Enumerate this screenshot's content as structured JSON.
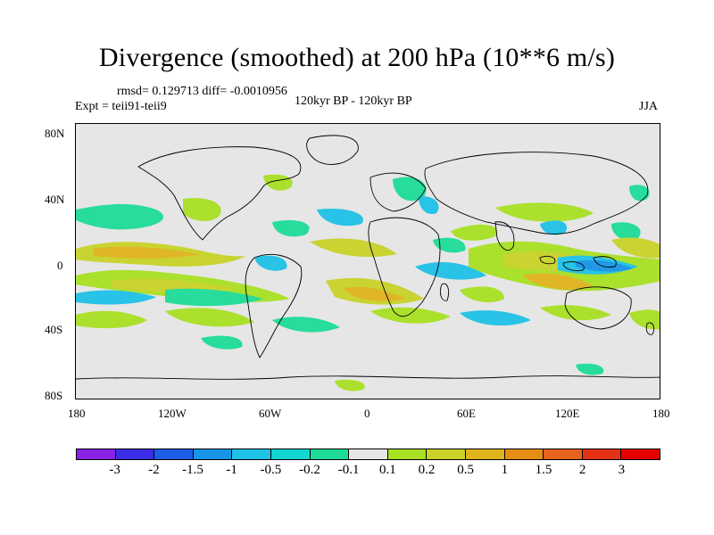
{
  "title": "Divergence (smoothed) at 200 hPa (10**6 m/s)",
  "stats": "rmsd= 0.129713 diff= -0.0010956",
  "expt": "Expt = teii91-teii9",
  "period": "120kyr BP - 120kyr BP",
  "season": "JJA",
  "y_ticks": [
    "80N",
    "40N",
    "0",
    "40S",
    "80S"
  ],
  "x_ticks": [
    "180",
    "120W",
    "60W",
    "0",
    "60E",
    "120E",
    "180"
  ],
  "colorbar": {
    "labels": [
      "-3",
      "-2",
      "-1.5",
      "-1",
      "-0.5",
      "-0.2",
      "-0.1",
      "0.1",
      "0.2",
      "0.5",
      "1",
      "1.5",
      "2",
      "3"
    ],
    "colors": [
      "#8a22e6",
      "#3c2ee6",
      "#1e5ee6",
      "#1694e6",
      "#1ec2e6",
      "#14d6d0",
      "#1edc98",
      "#e6e6e6",
      "#a8e024",
      "#c8d228",
      "#e0b41e",
      "#e68e14",
      "#e6641e",
      "#e63214",
      "#e60000"
    ]
  },
  "map": {
    "background": "#e6e6e6",
    "coast_color": "#000000",
    "projection": "cylindrical-equidistant",
    "lon_range": [
      -180,
      180
    ],
    "lat_range": [
      -90,
      90
    ]
  }
}
